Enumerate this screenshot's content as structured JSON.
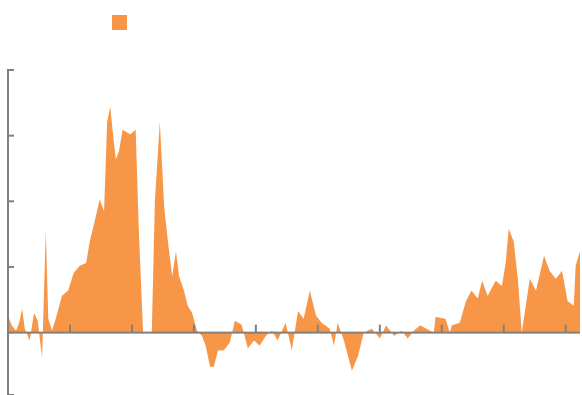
{
  "chart_data": {
    "type": "area",
    "color": "#f79646",
    "legend": "top-left",
    "x": [
      0,
      0.06,
      0.13,
      0.18,
      0.23,
      0.27,
      0.35,
      0.42,
      0.48,
      0.55,
      0.61,
      0.65,
      0.71,
      0.77,
      0.87,
      0.97,
      1.06,
      1.16,
      1.26,
      1.32,
      1.4,
      1.48,
      1.55,
      1.6,
      1.65,
      1.69,
      1.74,
      1.79,
      1.85,
      1.97,
      2.06,
      2.11,
      2.18,
      2.32,
      2.37,
      2.45,
      2.52,
      2.58,
      2.65,
      2.71,
      2.76,
      2.84,
      2.9,
      2.97,
      3.05,
      3.13,
      3.19,
      3.26,
      3.32,
      3.39,
      3.48,
      3.58,
      3.66,
      3.77,
      3.87,
      3.97,
      4.06,
      4.16,
      4.26,
      4.35,
      4.48,
      4.58,
      4.68,
      4.77,
      4.87,
      4.97,
      5.06,
      5.19,
      5.26,
      5.32,
      5.42,
      5.55,
      5.65,
      5.74,
      5.87,
      6.0,
      6.1,
      6.23,
      6.35,
      6.45,
      6.55,
      6.65,
      6.87,
      6.9,
      7.06,
      7.13,
      7.16,
      7.29,
      7.39,
      7.48,
      7.58,
      7.65,
      7.74,
      7.87,
      7.97,
      8.03,
      8.08,
      8.16,
      8.23,
      8.29,
      8.42,
      8.52,
      8.65,
      8.74,
      8.84,
      8.94,
      9.03,
      9.13,
      9.16,
      9.23
    ],
    "values": [
      0.26,
      0.11,
      0.03,
      0.15,
      0.36,
      0.06,
      -0.12,
      0.3,
      0.18,
      -0.39,
      1.55,
      0.21,
      0.03,
      0.21,
      0.56,
      0.64,
      0.91,
      1.02,
      1.06,
      1.39,
      1.7,
      2.03,
      1.85,
      3.21,
      3.44,
      3.06,
      2.64,
      2.76,
      3.09,
      3.02,
      3.09,
      1.58,
      0,
      0,
      2.0,
      3.21,
      1.92,
      1.39,
      0.86,
      1.24,
      0.86,
      0.64,
      0.41,
      0.3,
      0.03,
      -0.05,
      -0.2,
      -0.52,
      -0.52,
      -0.27,
      -0.27,
      -0.15,
      0.18,
      0.12,
      -0.24,
      -0.12,
      -0.2,
      -0.05,
      0.03,
      -0.12,
      0.15,
      -0.27,
      0.33,
      0.21,
      0.64,
      0.26,
      0.15,
      0.06,
      -0.2,
      0.15,
      -0.12,
      -0.58,
      -0.35,
      0,
      0.06,
      -0.09,
      0.11,
      -0.05,
      0.03,
      -0.09,
      0.03,
      0.11,
      0,
      0.24,
      0.21,
      0,
      0.11,
      0.15,
      0.48,
      0.64,
      0.52,
      0.79,
      0.56,
      0.79,
      0.71,
      1.06,
      1.58,
      1.39,
      0.79,
      0,
      0.82,
      0.64,
      1.17,
      0.94,
      0.82,
      0.94,
      0.48,
      0.41,
      1.02,
      1.24
    ],
    "xlim": [
      0,
      9.23
    ],
    "xticks": [
      1,
      2,
      3,
      4,
      5,
      6,
      7,
      8,
      9
    ],
    "ylim": [
      -0.95,
      4
    ],
    "yticks": [
      -0.95,
      0,
      1,
      2,
      3,
      4
    ]
  }
}
